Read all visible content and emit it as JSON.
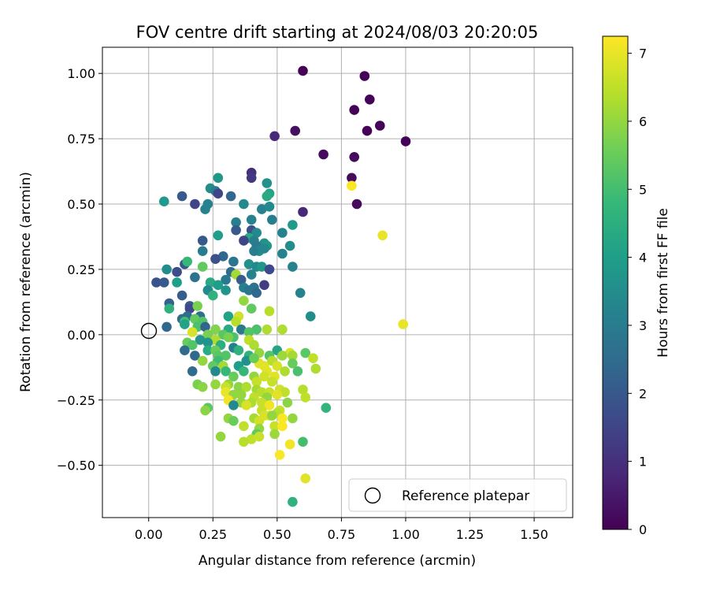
{
  "chart_data": {
    "type": "scatter",
    "title": "FOV centre drift starting at 2024/08/03 20:20:05",
    "xlabel": "Angular distance from reference (arcmin)",
    "ylabel": "Rotation from reference (arcmin)",
    "xlim": [
      -0.18,
      1.65
    ],
    "ylim": [
      -0.7,
      1.1
    ],
    "xticks": [
      "0.00",
      "0.25",
      "0.50",
      "0.75",
      "1.00",
      "1.25",
      "1.50"
    ],
    "yticks": [
      "−0.50",
      "−0.25",
      "0.00",
      "0.25",
      "0.50",
      "0.75",
      "1.00"
    ],
    "grid": true,
    "legend": {
      "location": "lower-right",
      "entries": [
        "Reference platepar"
      ]
    },
    "reference_point": {
      "x": 0.0,
      "y": 0.0,
      "label": "Reference platepar"
    },
    "colorbar": {
      "label": "Hours from first FF file",
      "colormap": "viridis",
      "range": [
        0,
        7.25
      ],
      "ticks": [
        "0",
        "1",
        "2",
        "3",
        "4",
        "5",
        "6",
        "7"
      ]
    },
    "points": [
      [
        0.6,
        1.01,
        0.05
      ],
      [
        0.84,
        0.99,
        0.05
      ],
      [
        0.86,
        0.9,
        0.05
      ],
      [
        0.8,
        0.86,
        0.05
      ],
      [
        0.9,
        0.8,
        0.05
      ],
      [
        0.85,
        0.78,
        0.05
      ],
      [
        0.57,
        0.78,
        0.3
      ],
      [
        1.0,
        0.74,
        0.05
      ],
      [
        0.49,
        0.76,
        0.8
      ],
      [
        0.68,
        0.69,
        0.2
      ],
      [
        0.8,
        0.68,
        0.2
      ],
      [
        0.79,
        0.6,
        0.2
      ],
      [
        0.81,
        0.5,
        0.2
      ],
      [
        0.6,
        0.47,
        0.8
      ],
      [
        0.4,
        0.62,
        1.0
      ],
      [
        0.4,
        0.6,
        1.2
      ],
      [
        0.46,
        0.58,
        3.6
      ],
      [
        0.47,
        0.54,
        4.2
      ],
      [
        0.46,
        0.53,
        4.3
      ],
      [
        0.27,
        0.6,
        3.8
      ],
      [
        0.24,
        0.56,
        3.5
      ],
      [
        0.26,
        0.55,
        3.0
      ],
      [
        0.27,
        0.54,
        1.5
      ],
      [
        0.32,
        0.53,
        2.4
      ],
      [
        0.13,
        0.53,
        2.0
      ],
      [
        0.06,
        0.51,
        3.9
      ],
      [
        0.18,
        0.5,
        1.5
      ],
      [
        0.23,
        0.5,
        3.2
      ],
      [
        0.22,
        0.48,
        3.2
      ],
      [
        0.37,
        0.5,
        3.4
      ],
      [
        0.44,
        0.48,
        3.2
      ],
      [
        0.47,
        0.49,
        3.4
      ],
      [
        0.34,
        0.43,
        3.1
      ],
      [
        0.4,
        0.44,
        3.2
      ],
      [
        0.48,
        0.44,
        3.1
      ],
      [
        0.56,
        0.42,
        3.9
      ],
      [
        0.34,
        0.4,
        2.0
      ],
      [
        0.4,
        0.4,
        1.8
      ],
      [
        0.42,
        0.39,
        3.4
      ],
      [
        0.27,
        0.38,
        4.0
      ],
      [
        0.39,
        0.37,
        4.3
      ],
      [
        0.41,
        0.36,
        3.1
      ],
      [
        0.37,
        0.36,
        1.5
      ],
      [
        0.21,
        0.36,
        2.0
      ],
      [
        0.45,
        0.35,
        3.6
      ],
      [
        0.42,
        0.34,
        2.9
      ],
      [
        0.46,
        0.34,
        3.8
      ],
      [
        0.43,
        0.32,
        3.5
      ],
      [
        0.41,
        0.32,
        3.1
      ],
      [
        0.45,
        0.33,
        3.3
      ],
      [
        0.52,
        0.39,
        3.2
      ],
      [
        0.55,
        0.34,
        3.5
      ],
      [
        0.21,
        0.32,
        3.0
      ],
      [
        0.52,
        0.31,
        3.2
      ],
      [
        0.29,
        0.3,
        2.4
      ],
      [
        0.33,
        0.28,
        2.8
      ],
      [
        0.26,
        0.29,
        1.8
      ],
      [
        0.14,
        0.27,
        2.0
      ],
      [
        0.15,
        0.28,
        4.8
      ],
      [
        0.39,
        0.27,
        3.6
      ],
      [
        0.42,
        0.26,
        3.4
      ],
      [
        0.44,
        0.26,
        3.8
      ],
      [
        0.47,
        0.25,
        1.6
      ],
      [
        0.56,
        0.26,
        3.2
      ],
      [
        0.07,
        0.25,
        3.5
      ],
      [
        0.21,
        0.26,
        5.4
      ],
      [
        0.11,
        0.24,
        1.7
      ],
      [
        0.32,
        0.24,
        2.5
      ],
      [
        0.4,
        0.23,
        3.2
      ],
      [
        0.34,
        0.23,
        6.2
      ],
      [
        0.3,
        0.21,
        2.9
      ],
      [
        0.36,
        0.21,
        2.1
      ],
      [
        0.18,
        0.22,
        2.7
      ],
      [
        0.03,
        0.2,
        1.8
      ],
      [
        0.06,
        0.2,
        2.0
      ],
      [
        0.11,
        0.2,
        4.0
      ],
      [
        0.24,
        0.2,
        4.3
      ],
      [
        0.27,
        0.19,
        4.0
      ],
      [
        0.37,
        0.18,
        3.1
      ],
      [
        0.41,
        0.18,
        2.7
      ],
      [
        0.45,
        0.19,
        1.3
      ],
      [
        0.23,
        0.17,
        3.4
      ],
      [
        0.3,
        0.17,
        3.7
      ],
      [
        0.39,
        0.17,
        2.8
      ],
      [
        0.42,
        0.16,
        2.4
      ],
      [
        0.59,
        0.16,
        3.2
      ],
      [
        0.25,
        0.15,
        4.6
      ],
      [
        0.13,
        0.15,
        2.1
      ],
      [
        0.37,
        0.13,
        6.0
      ],
      [
        0.08,
        0.12,
        2.2
      ],
      [
        0.16,
        0.11,
        2.0
      ],
      [
        0.08,
        0.1,
        4.6
      ],
      [
        0.16,
        0.1,
        1.6
      ],
      [
        0.19,
        0.11,
        5.7
      ],
      [
        0.4,
        0.1,
        5.4
      ],
      [
        0.47,
        0.09,
        6.4
      ],
      [
        0.15,
        0.07,
        2.6
      ],
      [
        0.2,
        0.07,
        2.6
      ],
      [
        0.13,
        0.06,
        2.5
      ],
      [
        0.31,
        0.07,
        4.1
      ],
      [
        0.35,
        0.07,
        6.7
      ],
      [
        0.18,
        0.06,
        5.4
      ],
      [
        0.21,
        0.05,
        5.2
      ],
      [
        0.14,
        0.05,
        5.0
      ],
      [
        0.34,
        0.05,
        6.4
      ],
      [
        0.63,
        0.07,
        3.5
      ],
      [
        0.07,
        0.03,
        2.4
      ],
      [
        0.14,
        0.04,
        4.1
      ],
      [
        0.19,
        0.03,
        5.1
      ],
      [
        0.22,
        0.03,
        2.3
      ],
      [
        0.31,
        0.02,
        4.4
      ],
      [
        0.26,
        0.02,
        5.8
      ],
      [
        0.36,
        0.02,
        2.9
      ],
      [
        0.42,
        0.02,
        5.1
      ],
      [
        0.46,
        0.02,
        6.3
      ],
      [
        0.52,
        0.02,
        6.3
      ],
      [
        0.17,
        0.01,
        6.8
      ],
      [
        0.23,
        0.0,
        5.7
      ],
      [
        0.29,
        0.0,
        5.3
      ],
      [
        0.39,
        0.01,
        5.2
      ],
      [
        0.33,
        -0.01,
        5.1
      ],
      [
        0.26,
        -0.02,
        6.3
      ],
      [
        0.31,
        -0.01,
        5.7
      ],
      [
        0.39,
        -0.02,
        6.5
      ],
      [
        0.2,
        -0.02,
        3.7
      ],
      [
        0.23,
        -0.03,
        3.7
      ],
      [
        0.15,
        -0.03,
        5.5
      ],
      [
        0.17,
        -0.04,
        5.2
      ],
      [
        0.28,
        -0.04,
        4.5
      ],
      [
        0.41,
        -0.04,
        6.3
      ],
      [
        0.14,
        -0.06,
        2.5
      ],
      [
        0.33,
        -0.05,
        3.1
      ],
      [
        0.23,
        -0.06,
        4.4
      ],
      [
        0.26,
        -0.06,
        5.5
      ],
      [
        0.35,
        -0.06,
        4.6
      ],
      [
        0.5,
        -0.06,
        4.2
      ],
      [
        0.43,
        -0.07,
        6.0
      ],
      [
        0.55,
        -0.07,
        6.8
      ],
      [
        0.56,
        -0.08,
        6.2
      ],
      [
        0.61,
        -0.07,
        5.3
      ],
      [
        0.18,
        -0.08,
        2.4
      ],
      [
        0.27,
        -0.08,
        5.3
      ],
      [
        0.3,
        -0.08,
        5.2
      ],
      [
        0.39,
        -0.08,
        4.6
      ],
      [
        0.47,
        -0.08,
        5.2
      ],
      [
        0.52,
        -0.08,
        6.1
      ],
      [
        0.64,
        -0.09,
        6.5
      ],
      [
        0.21,
        -0.1,
        6.0
      ],
      [
        0.27,
        -0.1,
        4.9
      ],
      [
        0.38,
        -0.1,
        3.6
      ],
      [
        0.43,
        -0.11,
        6.9
      ],
      [
        0.41,
        -0.09,
        5.5
      ],
      [
        0.48,
        -0.1,
        6.4
      ],
      [
        0.56,
        -0.11,
        5.5
      ],
      [
        0.25,
        -0.12,
        5.4
      ],
      [
        0.29,
        -0.12,
        6.2
      ],
      [
        0.35,
        -0.12,
        4.0
      ],
      [
        0.45,
        -0.12,
        6.9
      ],
      [
        0.5,
        -0.12,
        6.8
      ],
      [
        0.65,
        -0.13,
        6.3
      ],
      [
        0.17,
        -0.14,
        2.5
      ],
      [
        0.26,
        -0.14,
        3.4
      ],
      [
        0.3,
        -0.14,
        4.8
      ],
      [
        0.37,
        -0.14,
        4.8
      ],
      [
        0.46,
        -0.14,
        6.9
      ],
      [
        0.53,
        -0.14,
        6.3
      ],
      [
        0.58,
        -0.14,
        5.1
      ],
      [
        0.33,
        -0.16,
        5.5
      ],
      [
        0.41,
        -0.16,
        6.0
      ],
      [
        0.45,
        -0.16,
        6.7
      ],
      [
        0.49,
        -0.16,
        6.9
      ],
      [
        0.26,
        -0.19,
        6.0
      ],
      [
        0.31,
        -0.19,
        6.0
      ],
      [
        0.42,
        -0.18,
        6.6
      ],
      [
        0.48,
        -0.18,
        6.6
      ],
      [
        0.19,
        -0.19,
        5.7
      ],
      [
        0.21,
        -0.2,
        5.9
      ],
      [
        0.3,
        -0.2,
        6.6
      ],
      [
        0.35,
        -0.2,
        5.9
      ],
      [
        0.38,
        -0.2,
        6.3
      ],
      [
        0.42,
        -0.21,
        6.2
      ],
      [
        0.44,
        -0.22,
        6.4
      ],
      [
        0.47,
        -0.22,
        6.6
      ],
      [
        0.51,
        -0.21,
        6.7
      ],
      [
        0.53,
        -0.22,
        6.5
      ],
      [
        0.6,
        -0.21,
        6.4
      ],
      [
        0.3,
        -0.22,
        7.0
      ],
      [
        0.33,
        -0.23,
        6.0
      ],
      [
        0.36,
        -0.23,
        6.0
      ],
      [
        0.41,
        -0.24,
        6.5
      ],
      [
        0.46,
        -0.24,
        6.0
      ],
      [
        0.5,
        -0.23,
        6.9
      ],
      [
        0.61,
        -0.24,
        6.5
      ],
      [
        0.31,
        -0.25,
        7.1
      ],
      [
        0.36,
        -0.26,
        6.0
      ],
      [
        0.4,
        -0.26,
        6.3
      ],
      [
        0.44,
        -0.26,
        6.6
      ],
      [
        0.54,
        -0.26,
        5.9
      ],
      [
        0.33,
        -0.27,
        3.4
      ],
      [
        0.23,
        -0.28,
        5.3
      ],
      [
        0.22,
        -0.29,
        5.9
      ],
      [
        0.38,
        -0.27,
        6.8
      ],
      [
        0.47,
        -0.27,
        7.1
      ],
      [
        0.51,
        -0.29,
        6.6
      ],
      [
        0.69,
        -0.28,
        4.7
      ],
      [
        0.44,
        -0.29,
        6.6
      ],
      [
        0.47,
        -0.31,
        7.0
      ],
      [
        0.5,
        -0.3,
        6.4
      ],
      [
        0.31,
        -0.32,
        6.0
      ],
      [
        0.33,
        -0.33,
        5.5
      ],
      [
        0.41,
        -0.32,
        6.2
      ],
      [
        0.43,
        -0.33,
        6.7
      ],
      [
        0.45,
        -0.31,
        6.8
      ],
      [
        0.48,
        -0.31,
        6.0
      ],
      [
        0.52,
        -0.32,
        7.2
      ],
      [
        0.56,
        -0.32,
        6.0
      ],
      [
        0.37,
        -0.35,
        6.5
      ],
      [
        0.43,
        -0.36,
        6.0
      ],
      [
        0.49,
        -0.35,
        6.6
      ],
      [
        0.52,
        -0.35,
        7.2
      ],
      [
        0.42,
        -0.38,
        5.4
      ],
      [
        0.28,
        -0.39,
        6.0
      ],
      [
        0.4,
        -0.4,
        6.5
      ],
      [
        0.43,
        -0.39,
        6.6
      ],
      [
        0.49,
        -0.38,
        6.1
      ],
      [
        0.37,
        -0.41,
        6.4
      ],
      [
        0.55,
        -0.42,
        7.1
      ],
      [
        0.6,
        -0.41,
        5.0
      ],
      [
        0.51,
        -0.46,
        7.2
      ],
      [
        0.61,
        -0.55,
        6.9
      ],
      [
        0.56,
        -0.64,
        4.6
      ],
      [
        0.79,
        0.57,
        7.2
      ],
      [
        0.91,
        0.38,
        7.0
      ],
      [
        0.99,
        0.04,
        7.0
      ]
    ]
  }
}
